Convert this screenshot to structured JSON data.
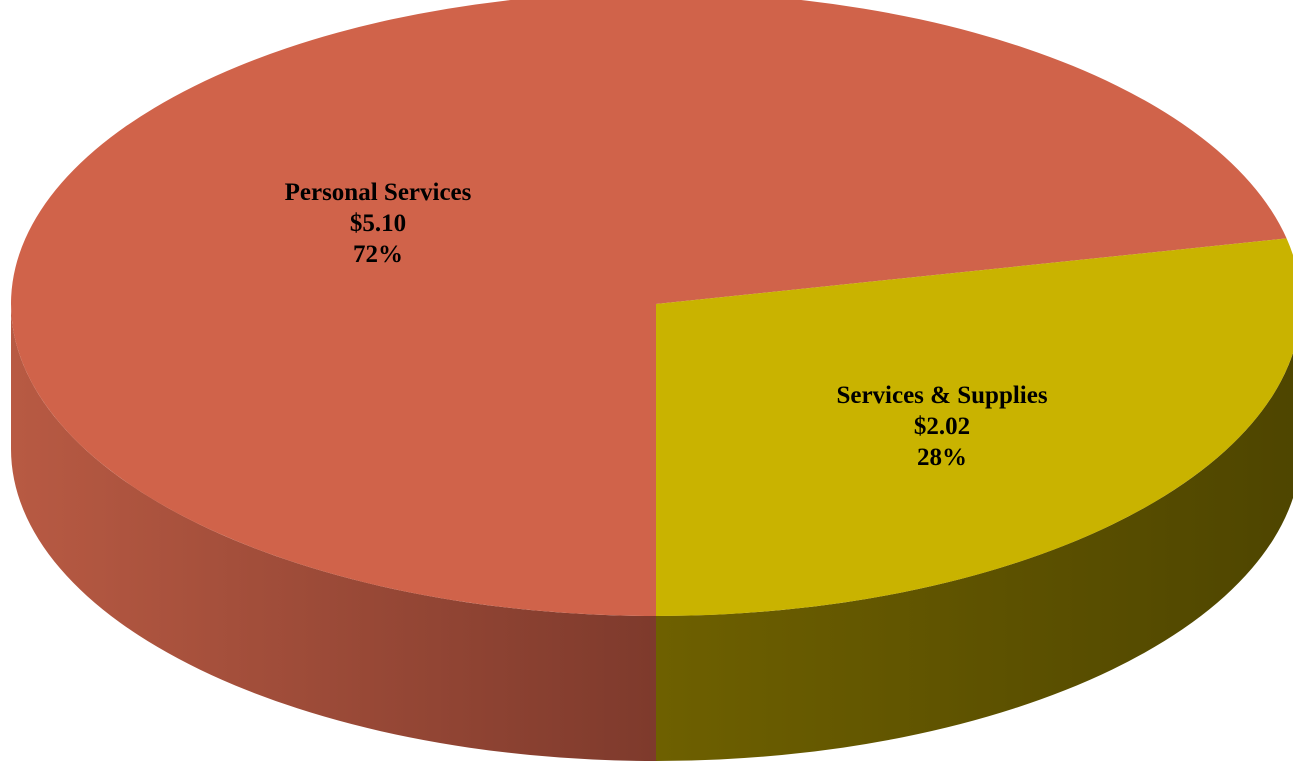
{
  "chart_data": {
    "type": "pie",
    "style": "3d",
    "title": "",
    "categories": [
      "Personal Services",
      "Services & Supplies"
    ],
    "values": [
      5.1,
      2.02
    ],
    "value_labels": [
      "$5.10",
      "$2.02"
    ],
    "percent_labels": [
      "72%",
      "28%"
    ],
    "colors": [
      "#D0634A",
      "#C9B300"
    ],
    "side_colors": [
      "#9E4A36",
      "#5E5000"
    ],
    "legend": "none"
  }
}
